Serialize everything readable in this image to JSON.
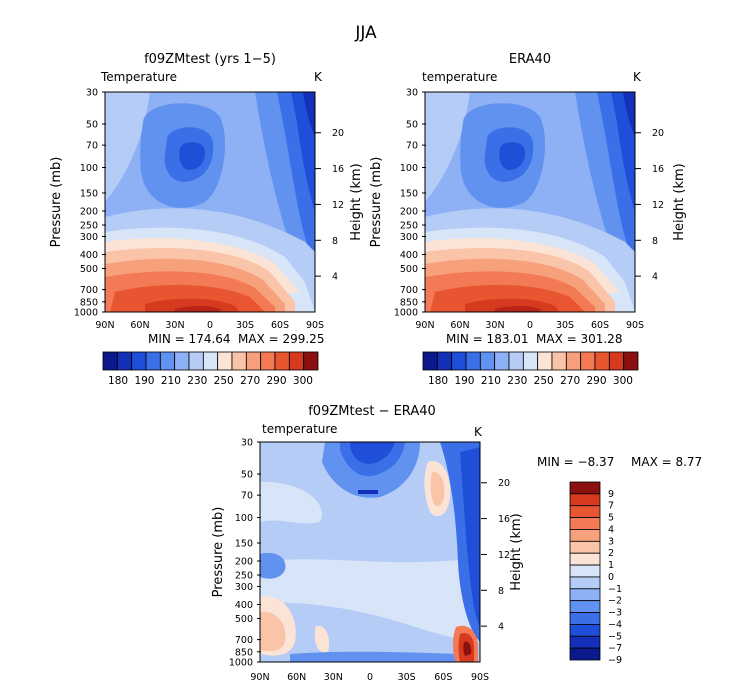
{
  "figure_title": "JJA",
  "chart_data": [
    {
      "type": "contour",
      "title": "f09ZMtest (yrs 1−5)",
      "field_label": "Temperature",
      "units": "K",
      "xlabel": "",
      "ylabel": "Pressure (mb)",
      "y2label": "Height (km)",
      "x_ticks": [
        "90N",
        "60N",
        "30N",
        "0",
        "30S",
        "60S",
        "90S"
      ],
      "y_ticks": [
        "30",
        "50",
        "70",
        "100",
        "150",
        "200",
        "250",
        "300",
        "400",
        "500",
        "700",
        "850",
        "1000"
      ],
      "y2_ticks": [
        "20",
        "16",
        "12",
        "8",
        "4"
      ],
      "min_label": "MIN =  174.64",
      "max_label": "MAX =  299.25",
      "colorbar_labels": [
        "180",
        "190",
        "210",
        "230",
        "250",
        "270",
        "290",
        "300"
      ],
      "colorbar_levels": [
        180,
        190,
        200,
        210,
        220,
        230,
        240,
        250,
        260,
        270,
        280,
        290,
        300
      ],
      "colors": [
        "#0a1a8c",
        "#1530b8",
        "#1f4fd8",
        "#3a6fe8",
        "#6292f0",
        "#8eb0f4",
        "#b5ccf6",
        "#d8e4f8",
        "#fbe3d6",
        "#f9c4a8",
        "#f7a07c",
        "#f27a55",
        "#e85631",
        "#d63a1f",
        "#8b1010"
      ]
    },
    {
      "type": "contour",
      "title": "ERA40",
      "field_label": "temperature",
      "units": "K",
      "xlabel": "",
      "ylabel": "Pressure (mb)",
      "y2label": "Height (km)",
      "x_ticks": [
        "90N",
        "60N",
        "30N",
        "0",
        "30S",
        "60S",
        "90S"
      ],
      "y_ticks": [
        "30",
        "50",
        "70",
        "100",
        "150",
        "200",
        "250",
        "300",
        "400",
        "500",
        "700",
        "850",
        "1000"
      ],
      "y2_ticks": [
        "20",
        "16",
        "12",
        "8",
        "4"
      ],
      "min_label": "MIN =  183.01",
      "max_label": "MAX =  301.28",
      "colorbar_labels": [
        "180",
        "190",
        "210",
        "230",
        "250",
        "270",
        "290",
        "300"
      ],
      "colorbar_levels": [
        180,
        190,
        200,
        210,
        220,
        230,
        240,
        250,
        260,
        270,
        280,
        290,
        300
      ]
    },
    {
      "type": "contour",
      "title": "f09ZMtest − ERA40",
      "field_label": "temperature",
      "units": "K",
      "xlabel": "",
      "ylabel": "Pressure (mb)",
      "y2label": "Height (km)",
      "x_ticks": [
        "90N",
        "60N",
        "30N",
        "0",
        "30S",
        "60S",
        "90S"
      ],
      "y_ticks": [
        "30",
        "50",
        "70",
        "100",
        "150",
        "200",
        "250",
        "300",
        "400",
        "500",
        "700",
        "850",
        "1000"
      ],
      "y2_ticks": [
        "20",
        "16",
        "12",
        "8",
        "4"
      ],
      "min_label": "MIN =  −8.37",
      "max_label": "MAX =    8.77",
      "colorbar_labels": [
        "9",
        "7",
        "5",
        "4",
        "3",
        "2",
        "1",
        "0",
        "−1",
        "−2",
        "−3",
        "−4",
        "−5",
        "−7",
        "−9"
      ],
      "colorbar_levels": [
        9,
        7,
        5,
        4,
        3,
        2,
        1,
        0,
        -1,
        -2,
        -3,
        -4,
        -5,
        -7,
        -9
      ]
    }
  ]
}
